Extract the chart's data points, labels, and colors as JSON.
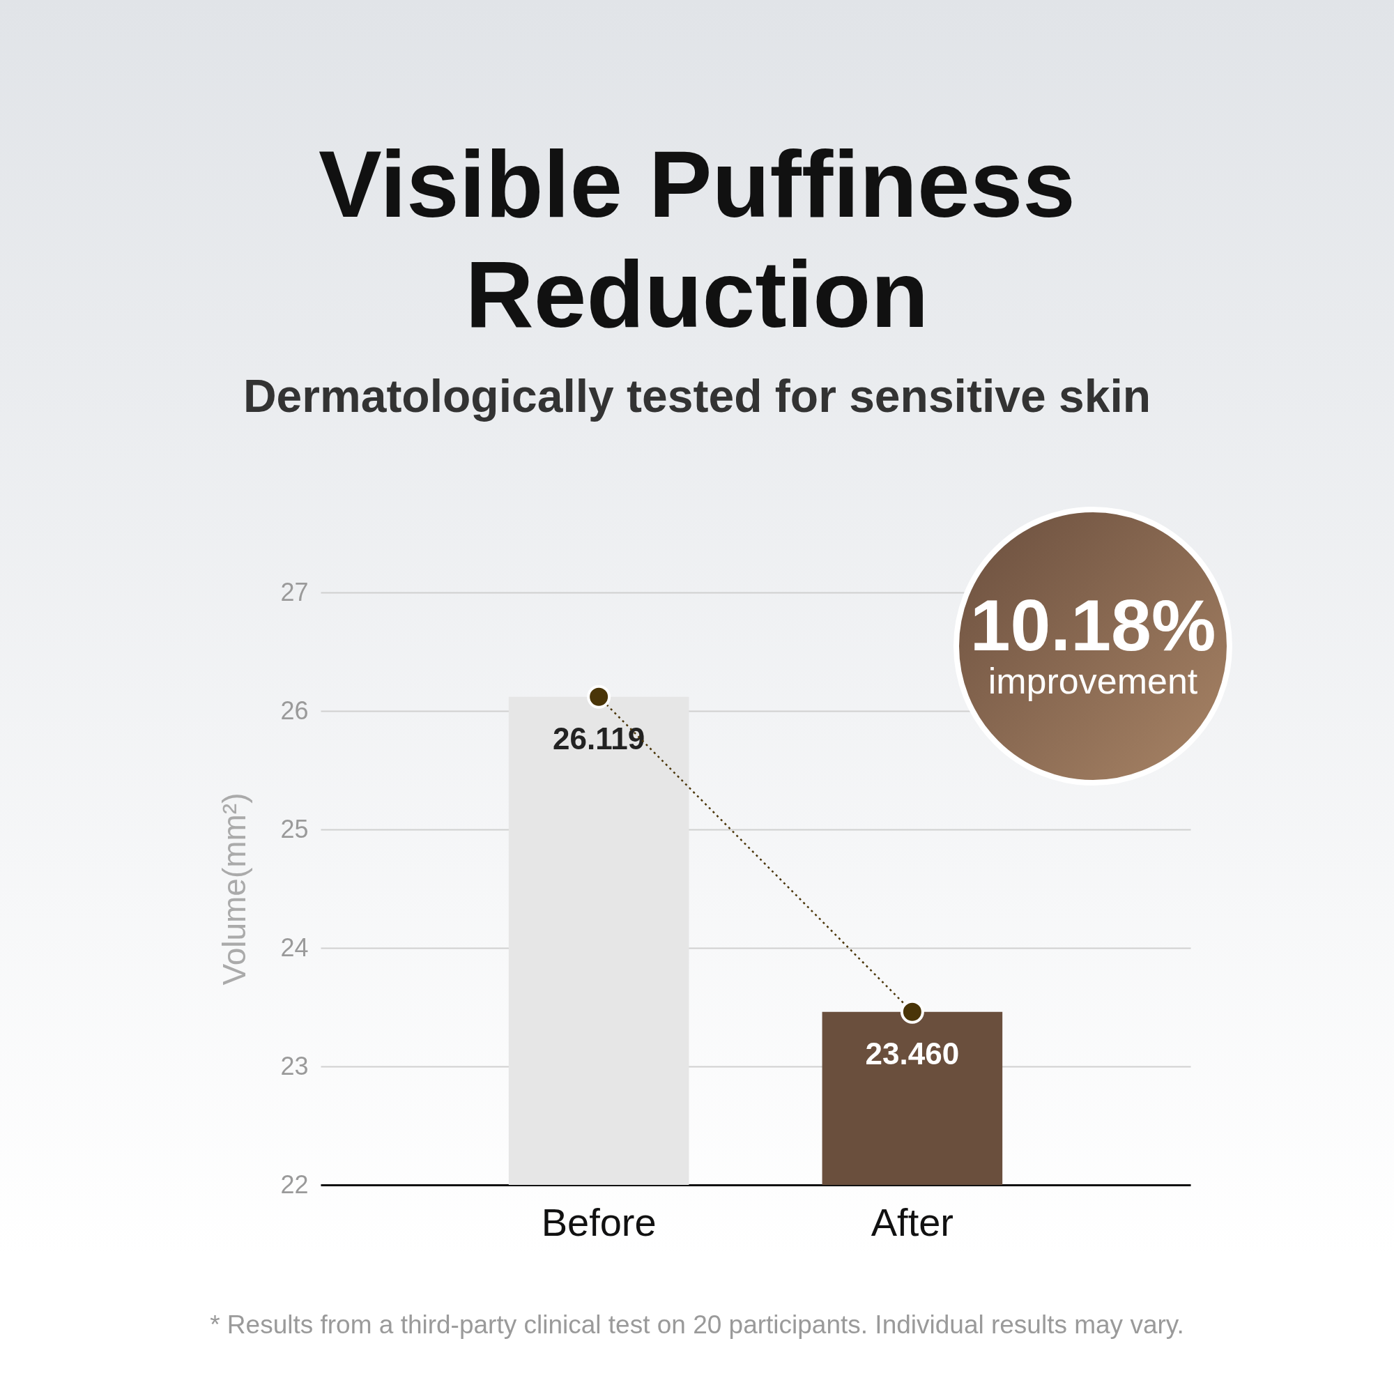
{
  "chart_data": {
    "type": "bar",
    "title": "Visible Puffiness Reduction",
    "subtitle": "Dermatologically tested for sensitive skin",
    "ylabel": "Volume(mm²)",
    "categories": [
      "Before",
      "After"
    ],
    "series": [
      {
        "colors": [
          "#e6e6e6",
          "#6a4f3d"
        ],
        "values": [
          26.119,
          23.46
        ],
        "value_labels": [
          "26.119",
          "23.460"
        ]
      },
      {
        "type": "line",
        "color": "#4a3508",
        "values": [
          26.119,
          23.46
        ],
        "line_style": "dotted",
        "marker": "circle"
      }
    ],
    "ylim": [
      22,
      27
    ],
    "yticks": [
      22,
      23,
      24,
      25,
      26,
      27
    ],
    "grid": "y",
    "annotations": [
      "10.18% improvement",
      "* Results from a third-party clinical test on 20 participants. Individual results may vary."
    ]
  }
}
